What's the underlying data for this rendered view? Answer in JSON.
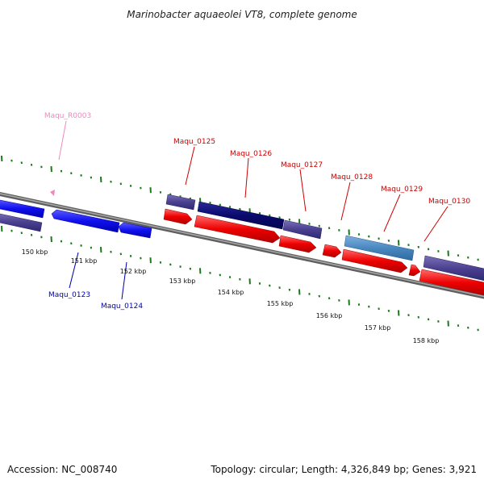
{
  "title": "Marinobacter aquaeolei VT8, complete genome",
  "footer": {
    "accession": "Accession: NC_008740",
    "summary": "Topology: circular; Length: 4,326,849 bp; Genes: 3,921"
  },
  "colors": {
    "background": "#ffffff",
    "backbone": "#8a8a8a",
    "ticks": "#1a7a1a",
    "forward_label": "#cc0000",
    "reverse_label": "#0000aa",
    "rna_label": "#ee88bb"
  },
  "scale": {
    "unit": "kbp",
    "tick_labels": [
      "150 kbp",
      "151 kbp",
      "152 kbp",
      "153 kbp",
      "154 kbp",
      "155 kbp",
      "156 kbp",
      "157 kbp",
      "158 kbp"
    ]
  },
  "gene_labels": [
    {
      "name": "Maqu_R0003",
      "strand": "rna"
    },
    {
      "name": "Maqu_0125",
      "strand": "forward"
    },
    {
      "name": "Maqu_0126",
      "strand": "forward"
    },
    {
      "name": "Maqu_0127",
      "strand": "forward"
    },
    {
      "name": "Maqu_0128",
      "strand": "forward"
    },
    {
      "name": "Maqu_0129",
      "strand": "forward"
    },
    {
      "name": "Maqu_0130",
      "strand": "forward"
    },
    {
      "name": "Maqu_0123",
      "strand": "reverse"
    },
    {
      "name": "Maqu_0124",
      "strand": "reverse"
    }
  ]
}
